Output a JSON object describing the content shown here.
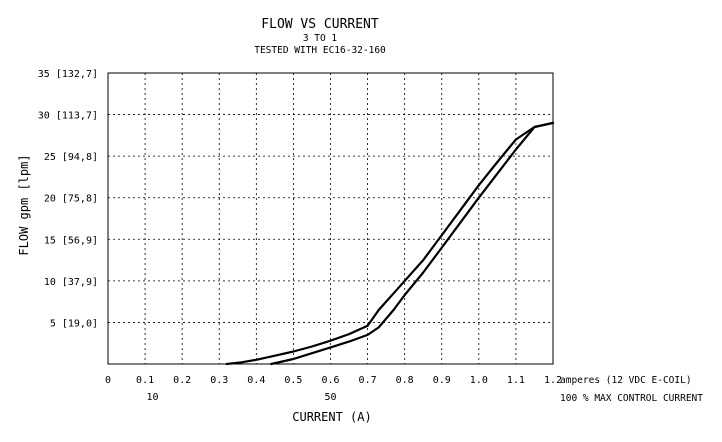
{
  "chart_data": {
    "type": "line",
    "title": "FLOW VS CURRENT",
    "subtitle_1": "3 TO 1",
    "subtitle_2": "TESTED WITH EC16-32-160",
    "xlabel": "CURRENT (A)",
    "ylabel": "FLOW gpm [lpm]",
    "x_unit_note": "amperes (12 VDC E-COIL)",
    "percent_note": "100 % MAX CONTROL CURRENT",
    "xlim": [
      0,
      1.2
    ],
    "ylim": [
      0,
      35
    ],
    "grid": true,
    "x_ticks": [
      {
        "value": 0,
        "label": "0"
      },
      {
        "value": 0.1,
        "label": "0.1"
      },
      {
        "value": 0.2,
        "label": "0.2"
      },
      {
        "value": 0.3,
        "label": "0.3"
      },
      {
        "value": 0.4,
        "label": "0.4"
      },
      {
        "value": 0.5,
        "label": "0.5"
      },
      {
        "value": 0.6,
        "label": "0.6"
      },
      {
        "value": 0.7,
        "label": "0.7"
      },
      {
        "value": 0.8,
        "label": "0.8"
      },
      {
        "value": 0.9,
        "label": "0.9"
      },
      {
        "value": 1.0,
        "label": "1.0"
      },
      {
        "value": 1.1,
        "label": "1.1"
      },
      {
        "value": 1.2,
        "label": "1.2"
      }
    ],
    "percent_ticks": [
      {
        "value": 0.12,
        "label": "10"
      },
      {
        "value": 0.6,
        "label": "50"
      }
    ],
    "y_ticks": [
      {
        "value": 5,
        "label": "5 [19,0]"
      },
      {
        "value": 10,
        "label": "10 [37,9]"
      },
      {
        "value": 15,
        "label": "15 [56,9]"
      },
      {
        "value": 20,
        "label": "20 [75,8]"
      },
      {
        "value": 25,
        "label": "25 [94,8]"
      },
      {
        "value": 30,
        "label": "30 [113,7]"
      },
      {
        "value": 35,
        "label": "35 [132,7]"
      }
    ],
    "series": [
      {
        "x": [
          0.32,
          0.36,
          0.4,
          0.45,
          0.5,
          0.55,
          0.6,
          0.65,
          0.7,
          0.73,
          0.78,
          0.85,
          0.9,
          0.95,
          1.0,
          1.05,
          1.1,
          1.15,
          1.2
        ],
        "y": [
          0.0,
          0.2,
          0.5,
          1.0,
          1.5,
          2.1,
          2.8,
          3.6,
          4.6,
          6.5,
          9.0,
          12.5,
          15.5,
          18.5,
          21.5,
          24.3,
          27.0,
          28.5,
          29.0
        ]
      },
      {
        "x": [
          0.44,
          0.5,
          0.55,
          0.6,
          0.65,
          0.7,
          0.73,
          0.77,
          0.8,
          0.85,
          0.9,
          0.95,
          1.0,
          1.05,
          1.1,
          1.15,
          1.2
        ],
        "y": [
          0.0,
          0.6,
          1.3,
          2.0,
          2.7,
          3.5,
          4.4,
          6.5,
          8.3,
          11.0,
          14.0,
          17.0,
          20.0,
          22.9,
          25.8,
          28.5,
          29.0
        ]
      }
    ]
  }
}
